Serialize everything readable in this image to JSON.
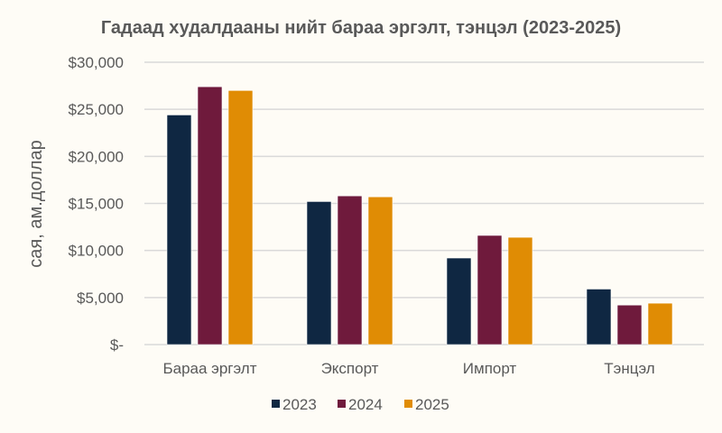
{
  "chart_data": {
    "type": "bar",
    "title": "Гадаад худалдааны нийт бараа эргэлт, тэнцэл (2023-2025)",
    "xlabel": "",
    "ylabel": "сая, ам.доллар",
    "ylim": [
      0,
      30000
    ],
    "yticks": [
      0,
      5000,
      10000,
      15000,
      20000,
      25000,
      30000
    ],
    "ytick_labels": [
      "$-",
      "$5,000",
      "$10,000",
      "$15,000",
      "$20,000",
      "$25,000",
      "$30,000"
    ],
    "grid": true,
    "legend_position": "bottom",
    "categories": [
      "Бараа эргэлт",
      "Экспорт",
      "Импорт",
      "Тэнцэл"
    ],
    "series": [
      {
        "name": "2023",
        "color": "#0f2742",
        "values": [
          24400,
          15200,
          9200,
          5900
        ]
      },
      {
        "name": "2024",
        "color": "#6f1a3c",
        "values": [
          27400,
          15800,
          11600,
          4200
        ]
      },
      {
        "name": "2025",
        "color": "#e08c04",
        "values": [
          27000,
          15700,
          11400,
          4400
        ]
      }
    ]
  }
}
